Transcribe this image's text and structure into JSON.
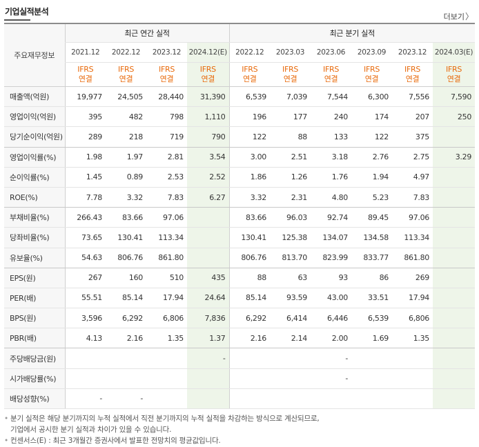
{
  "title": "기업실적분석",
  "more": {
    "label": "더보기",
    "chevron": "〉"
  },
  "header": {
    "row_label": "주요재무정보",
    "annual_title": "최근 연간 실적",
    "quarterly_title": "최근 분기 실적",
    "annual_periods": [
      "2021.12",
      "2022.12",
      "2023.12",
      "2024.12(E)"
    ],
    "quarterly_periods": [
      "2022.12",
      "2023.03",
      "2023.06",
      "2023.09",
      "2023.12",
      "2024.03(E)"
    ],
    "basis_top": "IFRS",
    "basis_bottom": "연결"
  },
  "rows": [
    {
      "label": "매출액(억원)",
      "values": [
        "19,977",
        "24,505",
        "28,440",
        "31,390",
        "6,539",
        "7,039",
        "7,544",
        "6,300",
        "7,556",
        "7,590"
      ]
    },
    {
      "label": "영업이익(억원)",
      "values": [
        "395",
        "482",
        "798",
        "1,110",
        "196",
        "177",
        "240",
        "174",
        "207",
        "250"
      ]
    },
    {
      "label": "당기순이익(억원)",
      "values": [
        "289",
        "218",
        "719",
        "790",
        "122",
        "88",
        "133",
        "122",
        "375",
        ""
      ]
    },
    {
      "label": "영업이익률(%)",
      "values": [
        "1.98",
        "1.97",
        "2.81",
        "3.54",
        "3.00",
        "2.51",
        "3.18",
        "2.76",
        "2.75",
        "3.29"
      ]
    },
    {
      "label": "순이익률(%)",
      "values": [
        "1.45",
        "0.89",
        "2.53",
        "2.52",
        "1.86",
        "1.26",
        "1.76",
        "1.94",
        "4.97",
        ""
      ]
    },
    {
      "label": "ROE(%)",
      "values": [
        "7.78",
        "3.32",
        "7.83",
        "6.27",
        "3.32",
        "2.31",
        "4.80",
        "5.23",
        "7.83",
        ""
      ]
    },
    {
      "label": "부채비율(%)",
      "values": [
        "266.43",
        "83.66",
        "97.06",
        "",
        "83.66",
        "96.03",
        "92.74",
        "89.45",
        "97.06",
        ""
      ]
    },
    {
      "label": "당좌비율(%)",
      "values": [
        "73.65",
        "130.41",
        "113.34",
        "",
        "130.41",
        "125.38",
        "134.07",
        "134.58",
        "113.34",
        ""
      ]
    },
    {
      "label": "유보율(%)",
      "values": [
        "54.63",
        "806.76",
        "861.80",
        "",
        "806.76",
        "813.70",
        "823.99",
        "833.77",
        "861.80",
        ""
      ]
    },
    {
      "label": "EPS(원)",
      "values": [
        "267",
        "160",
        "510",
        "435",
        "88",
        "63",
        "93",
        "86",
        "269",
        ""
      ]
    },
    {
      "label": "PER(배)",
      "values": [
        "55.51",
        "85.14",
        "17.94",
        "24.64",
        "85.14",
        "93.59",
        "43.00",
        "33.51",
        "17.94",
        ""
      ]
    },
    {
      "label": "BPS(원)",
      "values": [
        "3,596",
        "6,292",
        "6,806",
        "7,836",
        "6,292",
        "6,414",
        "6,446",
        "6,539",
        "6,806",
        ""
      ]
    },
    {
      "label": "PBR(배)",
      "values": [
        "4.13",
        "2.16",
        "1.35",
        "1.37",
        "2.16",
        "2.14",
        "2.00",
        "1.69",
        "1.35",
        ""
      ]
    },
    {
      "label": "주당배당금(원)",
      "values": [
        "",
        "",
        "",
        "-",
        "",
        "",
        "-",
        "",
        "",
        ""
      ]
    },
    {
      "label": "시가배당률(%)",
      "values": [
        "",
        "",
        "",
        "",
        "",
        "",
        "-",
        "",
        "",
        ""
      ]
    },
    {
      "label": "배당성향(%)",
      "values": [
        "-",
        "-",
        "",
        "",
        "",
        "",
        "",
        "",
        "",
        ""
      ]
    }
  ],
  "notes": [
    "분기 실적은 해당 분기까지의 누적 실적에서 직전 분기까지의 누적 실적을 차감하는 방식으로 계산되므로,",
    "기업에서 공시한 분기 실적과 차이가 있을 수 있습니다.",
    "컨센서스(E) : 최근 3개월간 증권사에서 발표한 전망치의 평균값입니다."
  ]
}
